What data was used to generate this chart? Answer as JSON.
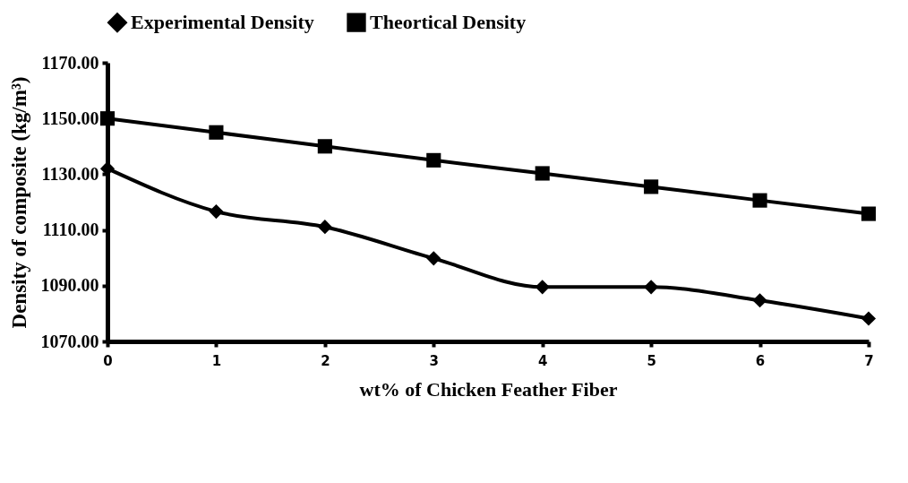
{
  "chart_data": {
    "type": "line",
    "xlabel": "wt% of Chicken Feather Fiber",
    "ylabel": "Density of composite (kg/m³)",
    "categories": [
      "0",
      "1",
      "2",
      "3",
      "4",
      "5",
      "6",
      "7"
    ],
    "series": [
      {
        "name": "Experimental Density",
        "color": "#000000",
        "marker": "diamond",
        "values": [
          1132,
          1116.6,
          1111.1,
          1099.8,
          1089.5,
          1089.5,
          1084.7,
          1078.2
        ]
      },
      {
        "name": "Theortical Density",
        "color": "#000000",
        "marker": "square",
        "values": [
          1150,
          1145,
          1140,
          1135,
          1130.3,
          1125.5,
          1120.6,
          1115.8
        ]
      }
    ],
    "ylim": [
      1070,
      1170
    ],
    "yticks": [
      {
        "value": 1070,
        "label": "1070.00"
      },
      {
        "value": 1090,
        "label": "1090.00"
      },
      {
        "value": 1110,
        "label": "1110.00"
      },
      {
        "value": 1130,
        "label": "1130.00"
      },
      {
        "value": 1150,
        "label": "1150.00"
      },
      {
        "value": 1170,
        "label": "1170.00"
      }
    ],
    "grid": false,
    "legend": "top",
    "line_style": "solid"
  }
}
